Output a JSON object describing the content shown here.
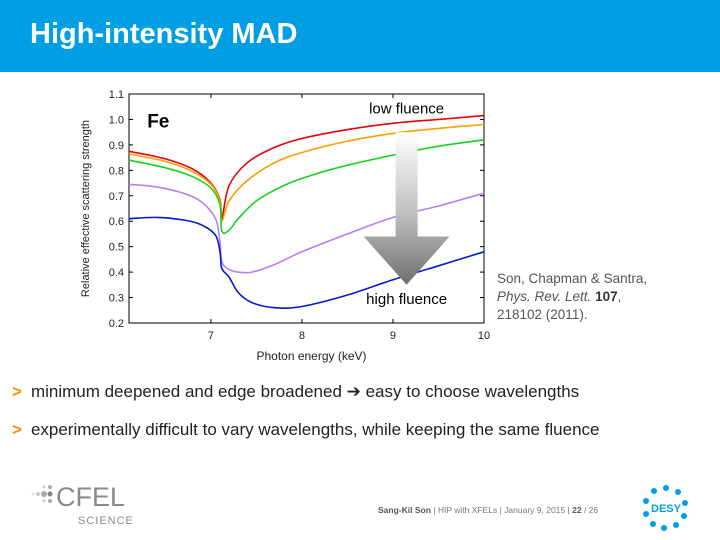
{
  "slide": {
    "title": "High-intensity MAD"
  },
  "reference": {
    "authors": "Son, Chapman & Santra,",
    "journal": "Phys. Rev. Lett.",
    "volume": "107",
    "pages_year": "218102 (2011)."
  },
  "bullets": [
    {
      "marker": ">",
      "text": "minimum deepened and edge broadened ➔ easy to choose wavelengths"
    },
    {
      "marker": ">",
      "text": "experimentally difficult to vary wavelengths, while keeping the same fluence"
    }
  ],
  "footer": {
    "author": "Sang-Kil Son",
    "event": "HIP with XFELs",
    "date": "January 9, 2015",
    "page": "22",
    "total": "/ 26"
  },
  "logos": {
    "left_main": "CFEL",
    "left_sub": "SCIENCE",
    "right": "DESY"
  },
  "chart_data": {
    "type": "line",
    "title": "",
    "xlabel": "Photon energy (keV)",
    "ylabel": "Relative effective scattering strength",
    "xlim": [
      6.1,
      10.0
    ],
    "ylim": [
      0.2,
      1.1
    ],
    "xticks": [
      7,
      8,
      9,
      10
    ],
    "yticks": [
      0.2,
      0.3,
      0.4,
      0.5,
      0.6,
      0.7,
      0.8,
      0.9,
      1.0,
      1.1
    ],
    "grid": false,
    "annotations": [
      {
        "text": "Fe",
        "x": 6.3,
        "y": 1.0
      },
      {
        "text": "low fluence",
        "x": 9.15,
        "y": 1.04
      },
      {
        "text": "high fluence",
        "x": 9.15,
        "y": 0.29
      }
    ],
    "arrow": {
      "from_y": 0.95,
      "to_y": 0.35,
      "x": 9.15
    },
    "series": [
      {
        "color": "#e8000b",
        "x": [
          6.1,
          6.5,
          6.8,
          7.0,
          7.1,
          7.12,
          7.2,
          7.4,
          7.7,
          8.0,
          8.5,
          9.0,
          9.5,
          10.0
        ],
        "y": [
          0.875,
          0.845,
          0.805,
          0.75,
          0.685,
          0.61,
          0.74,
          0.83,
          0.89,
          0.925,
          0.96,
          0.985,
          1.0,
          1.015
        ]
      },
      {
        "color": "#f5a000",
        "x": [
          6.1,
          6.5,
          6.8,
          7.0,
          7.1,
          7.12,
          7.2,
          7.4,
          7.7,
          8.0,
          8.5,
          9.0,
          9.5,
          10.0
        ],
        "y": [
          0.865,
          0.835,
          0.795,
          0.745,
          0.68,
          0.6,
          0.68,
          0.76,
          0.83,
          0.87,
          0.915,
          0.945,
          0.965,
          0.98
        ]
      },
      {
        "color": "#19d21e",
        "x": [
          6.1,
          6.5,
          6.8,
          7.0,
          7.1,
          7.12,
          7.2,
          7.3,
          7.5,
          7.8,
          8.1,
          8.5,
          9.0,
          9.5,
          10.0
        ],
        "y": [
          0.84,
          0.81,
          0.775,
          0.73,
          0.665,
          0.56,
          0.565,
          0.61,
          0.68,
          0.74,
          0.78,
          0.82,
          0.86,
          0.895,
          0.92
        ]
      },
      {
        "color": "#b97ff0",
        "x": [
          6.1,
          6.4,
          6.7,
          6.9,
          7.05,
          7.1,
          7.12,
          7.2,
          7.3,
          7.45,
          7.7,
          8.0,
          8.5,
          9.0,
          9.5,
          10.0
        ],
        "y": [
          0.745,
          0.735,
          0.71,
          0.675,
          0.61,
          0.52,
          0.44,
          0.41,
          0.4,
          0.4,
          0.43,
          0.48,
          0.55,
          0.615,
          0.66,
          0.71
        ]
      },
      {
        "color": "#0019d6",
        "x": [
          6.1,
          6.4,
          6.7,
          6.9,
          7.05,
          7.1,
          7.12,
          7.2,
          7.3,
          7.45,
          7.7,
          8.0,
          8.5,
          9.0,
          9.5,
          10.0
        ],
        "y": [
          0.61,
          0.615,
          0.605,
          0.585,
          0.545,
          0.48,
          0.415,
          0.38,
          0.32,
          0.28,
          0.26,
          0.265,
          0.31,
          0.37,
          0.425,
          0.48
        ]
      }
    ]
  }
}
